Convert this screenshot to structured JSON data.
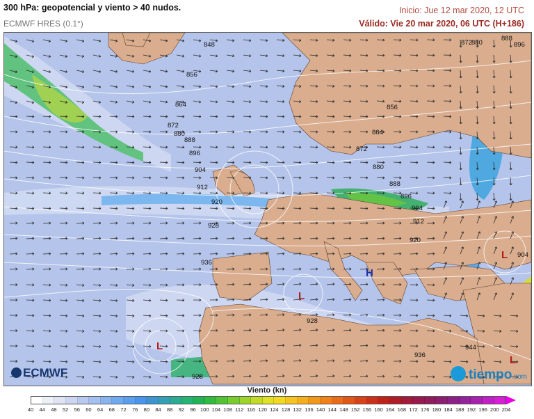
{
  "header": {
    "title": "300 hPa: geopotencial y viento > 40 nudos.",
    "model": "ECMWF HRES (0.1°)",
    "init": "Inicio: Jue 12 mar 2020, 12 UTC",
    "valid": "Válido: Vie 20 mar 2020, 06 UTC (H+186)"
  },
  "map": {
    "sea_color": "#b5c4ea",
    "land_color": "#d9ad8e",
    "contour_labels": [
      "848",
      "856",
      "864",
      "872",
      "880",
      "888",
      "896",
      "904",
      "912",
      "920",
      "928",
      "936",
      "856",
      "864",
      "872",
      "880",
      "888",
      "896",
      "904",
      "912",
      "920",
      "928",
      "936",
      "944",
      "928",
      "904",
      "872",
      "880",
      "888",
      "896"
    ],
    "pressure_centers": [
      "L",
      "L",
      "L",
      "L",
      "H"
    ]
  },
  "logos": {
    "ecmwf": "ECMWF",
    "tiempo": "tiempo",
    "tiempo_suffix": ".com"
  },
  "legend": {
    "title": "Viento (kn)",
    "ticks": [
      "40",
      "44",
      "48",
      "52",
      "56",
      "60",
      "64",
      "68",
      "72",
      "76",
      "80",
      "84",
      "88",
      "92",
      "96",
      "100",
      "104",
      "108",
      "112",
      "116",
      "120",
      "124",
      "128",
      "132",
      "136",
      "140",
      "144",
      "148",
      "152",
      "156",
      "160",
      "164",
      "168",
      "172",
      "176",
      "180",
      "184",
      "188",
      "192",
      "196",
      "200",
      "204"
    ],
    "colors": [
      "#ffffff",
      "#eef0f8",
      "#dfe4f4",
      "#cdd6f0",
      "#b9c8ee",
      "#a3c0f0",
      "#88b5f2",
      "#6ea9f2",
      "#5a9ef0",
      "#4795ec",
      "#3c95d2",
      "#33a0b4",
      "#2cab94",
      "#26b474",
      "#22b454",
      "#32bc3e",
      "#52c434",
      "#78cc2e",
      "#9ed42a",
      "#c2dc26",
      "#e0e024",
      "#f2d820",
      "#f6c41e",
      "#f6ae1c",
      "#f4981a",
      "#f08218",
      "#ea6c18",
      "#e25618",
      "#d84218",
      "#cc3018",
      "#be2218",
      "#b01c28",
      "#a41a3a",
      "#981a4c",
      "#901c5e",
      "#8c1e72",
      "#8c2086",
      "#94229a",
      "#a822b0",
      "#c020c6",
      "#d81cd8",
      "#ec18ea"
    ]
  }
}
